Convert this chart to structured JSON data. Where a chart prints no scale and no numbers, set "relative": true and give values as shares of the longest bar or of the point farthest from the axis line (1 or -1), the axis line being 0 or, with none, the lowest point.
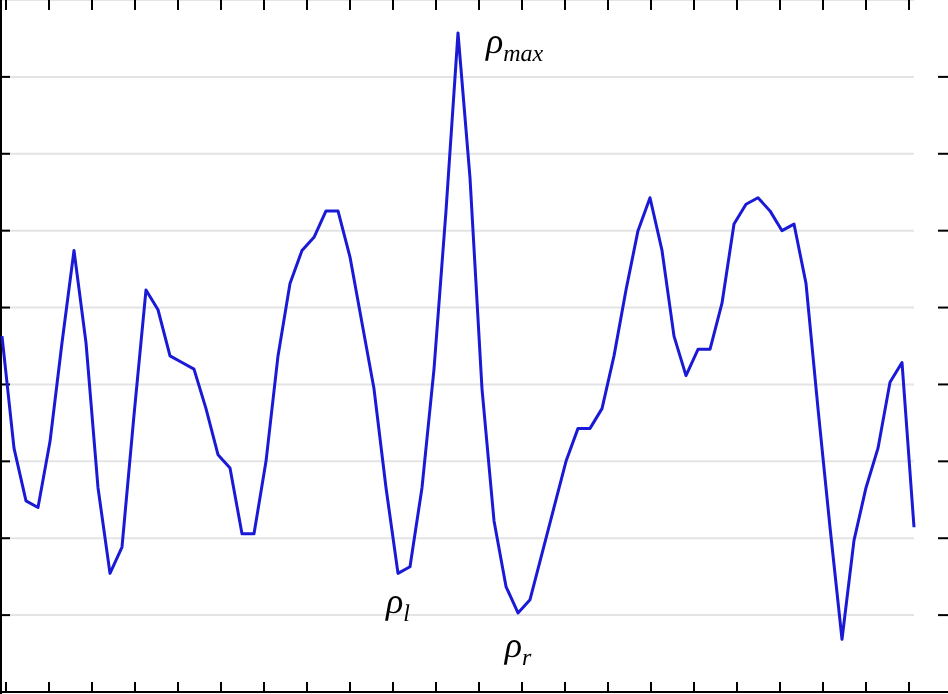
{
  "chart_data": {
    "type": "line",
    "relative": true,
    "grid": "y",
    "marker": "none",
    "line_style": "solid",
    "categories": [
      null,
      null,
      null,
      null,
      null,
      null,
      null,
      null,
      null,
      null,
      null,
      null,
      null,
      null,
      null,
      null,
      null,
      null,
      null,
      null,
      null,
      null,
      null,
      null,
      null,
      null,
      null,
      null,
      null,
      null,
      null,
      null,
      null,
      null,
      null,
      null,
      null,
      null,
      null,
      null,
      null,
      null,
      null,
      null,
      null,
      null,
      null,
      null,
      null,
      null,
      null,
      null,
      null,
      null,
      null,
      null,
      null,
      null,
      null,
      null,
      null,
      null,
      null,
      null,
      null,
      null,
      null,
      null,
      null,
      null,
      null,
      null,
      null,
      null,
      null,
      null,
      null
    ],
    "series": [
      {
        "color": "#1a1ad6",
        "values": [
          0.54,
          0.37,
          0.29,
          0.28,
          0.38,
          0.53,
          0.67,
          0.53,
          0.31,
          0.18,
          0.22,
          0.42,
          0.61,
          0.58,
          0.51,
          0.5,
          0.49,
          0.43,
          0.36,
          0.34,
          0.24,
          0.24,
          0.35,
          0.51,
          0.62,
          0.67,
          0.69,
          0.73,
          0.73,
          0.66,
          0.56,
          0.46,
          0.31,
          0.18,
          0.19,
          0.31,
          0.49,
          0.73,
          1,
          0.78,
          0.46,
          0.26,
          0.16,
          0.12,
          0.14,
          0.21,
          0.28,
          0.35,
          0.4,
          0.4,
          0.43,
          0.51,
          0.61,
          0.7,
          0.75,
          0.67,
          0.54,
          0.48,
          0.52,
          0.52,
          0.59,
          0.71,
          0.74,
          0.75,
          0.73,
          0.7,
          0.71,
          0.62,
          0.43,
          0.25,
          0.08,
          0.23,
          0.31,
          0.37,
          0.47,
          0.5,
          0.25
        ]
      }
    ],
    "annotations": [
      "ρ$_{max}$",
      "ρ$_{l}$",
      "ρ$_{r}$"
    ]
  }
}
